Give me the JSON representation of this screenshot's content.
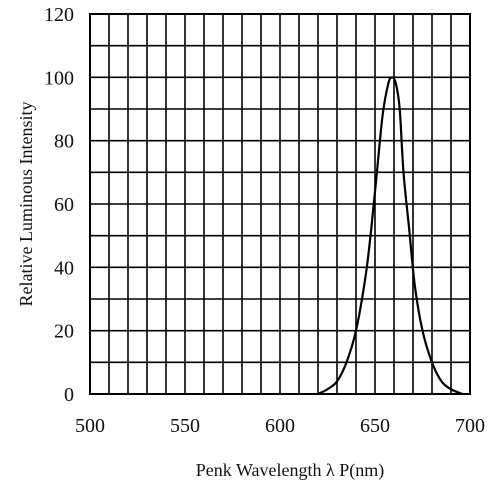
{
  "chart_data": {
    "type": "line",
    "title": "",
    "xlabel": "Penk Wavelength  λ P(nm)",
    "ylabel": "Relative Luminous Intensity",
    "xlim": [
      500,
      700
    ],
    "ylim": [
      0,
      120
    ],
    "x_ticks": [
      500,
      550,
      600,
      650,
      700
    ],
    "x_tick_labels": [
      "500",
      "550",
      "600",
      "650",
      "700"
    ],
    "y_ticks": [
      0,
      20,
      40,
      60,
      80,
      100,
      120
    ],
    "y_tick_labels": [
      "0",
      "20",
      "40",
      "60",
      "80",
      "100",
      "120"
    ],
    "x_grid_step": 10,
    "y_grid_step": 10,
    "grid": true,
    "legend": "none",
    "line_color": "#000000",
    "series": [
      {
        "x": [
          620,
          625,
          630,
          635,
          640,
          645,
          648,
          651,
          654,
          657,
          659,
          661,
          663,
          665,
          668,
          671,
          675,
          680,
          685,
          690,
          696
        ],
        "values": [
          0,
          1.5,
          4,
          10,
          20,
          37,
          52,
          70,
          88,
          98,
          100,
          98,
          90,
          70,
          52,
          34,
          20,
          10,
          4,
          1.5,
          0
        ]
      }
    ]
  }
}
